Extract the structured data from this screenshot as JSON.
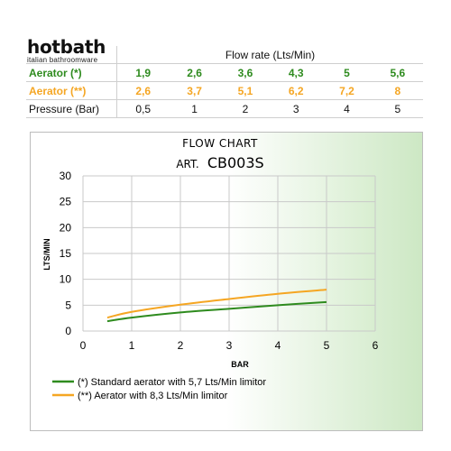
{
  "brand": {
    "name": "hotbath",
    "tagline": "italian bathroomware"
  },
  "table": {
    "header": "Flow rate (Lts/Min)",
    "rows": [
      {
        "label": "Aerator (*)",
        "values": [
          "1,9",
          "2,6",
          "3,6",
          "4,3",
          "5",
          "5,6"
        ],
        "style": "green"
      },
      {
        "label": "Aerator (**)",
        "values": [
          "2,6",
          "3,7",
          "5,1",
          "6,2",
          "7,2",
          "8"
        ],
        "style": "orange"
      },
      {
        "label": "Pressure (Bar)",
        "values": [
          "0,5",
          "1",
          "2",
          "3",
          "4",
          "5"
        ],
        "style": "press"
      }
    ]
  },
  "colors": {
    "green": "#2e8b1e",
    "orange": "#f5a623"
  },
  "chart_data": {
    "type": "line",
    "title": "FLOW CHART",
    "subtitle_prefix": "ART.",
    "subtitle": "CB003S",
    "xlabel": "BAR",
    "ylabel": "LTS/MIN",
    "xlim": [
      0,
      6
    ],
    "ylim": [
      0,
      30
    ],
    "xticks": [
      "0",
      "1",
      "2",
      "3",
      "4",
      "5",
      "6"
    ],
    "yticks": [
      "0",
      "5",
      "10",
      "15",
      "20",
      "25",
      "30"
    ],
    "grid": true,
    "legend_position": "bottom",
    "series": [
      {
        "name": "(*) Standard aerator with 5,7 Lts/Min limitor",
        "color": "#2e8b1e",
        "x": [
          0.5,
          1,
          2,
          3,
          4,
          5
        ],
        "y": [
          1.9,
          2.6,
          3.6,
          4.3,
          5,
          5.6
        ]
      },
      {
        "name": "(**) Aerator with 8,3 Lts/Min limitor",
        "color": "#f5a623",
        "x": [
          0.5,
          1,
          2,
          3,
          4,
          5
        ],
        "y": [
          2.6,
          3.7,
          5.1,
          6.2,
          7.2,
          8
        ]
      }
    ]
  }
}
